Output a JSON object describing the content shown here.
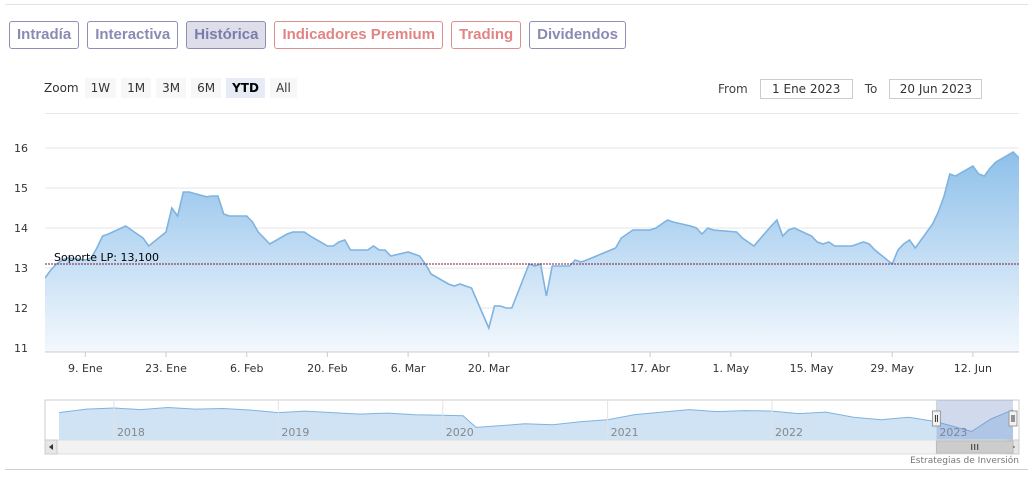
{
  "tabs": [
    {
      "label": "Intradía",
      "state": "normal"
    },
    {
      "label": "Interactiva",
      "state": "normal"
    },
    {
      "label": "Histórica",
      "state": "active"
    },
    {
      "label": "Indicadores Premium",
      "state": "red"
    },
    {
      "label": "Trading",
      "state": "red"
    },
    {
      "label": "Dividendos",
      "state": "normal"
    }
  ],
  "range_selector": {
    "zoom_label": "Zoom",
    "buttons": [
      "1W",
      "1M",
      "3M",
      "6M",
      "YTD",
      "All"
    ],
    "selected": "YTD",
    "from_label": "From",
    "from_value": "1 Ene 2023",
    "to_label": "To",
    "to_value": "20 Jun 2023"
  },
  "credits": "Estrategias de Inversión",
  "colors": {
    "line": "#7fb3e0",
    "area_top": "#8ec0ea",
    "area_bottom": "#f3f8fd",
    "support": "#7a1f3a",
    "nav_area": "#cfe3f5"
  },
  "chart_data": {
    "type": "area",
    "title": "",
    "xlabel": "",
    "ylabel": "",
    "ylim": [
      11,
      16
    ],
    "grid": true,
    "y_ticks": [
      11,
      12,
      13,
      14,
      15,
      16
    ],
    "x_tick_labels": [
      {
        "label": "9. Ene",
        "date": "2023-01-09"
      },
      {
        "label": "23. Ene",
        "date": "2023-01-23"
      },
      {
        "label": "6. Feb",
        "date": "2023-02-06"
      },
      {
        "label": "20. Feb",
        "date": "2023-02-20"
      },
      {
        "label": "6. Mar",
        "date": "2023-03-06"
      },
      {
        "label": "20. Mar",
        "date": "2023-03-20"
      },
      {
        "label": "17. Abr",
        "date": "2023-04-17"
      },
      {
        "label": "1. May",
        "date": "2023-05-01"
      },
      {
        "label": "15. May",
        "date": "2023-05-15"
      },
      {
        "label": "29. May",
        "date": "2023-05-29"
      },
      {
        "label": "12. Jun",
        "date": "2023-06-12"
      }
    ],
    "x_range": [
      "2023-01-02",
      "2023-06-20"
    ],
    "annotation": {
      "label": "Soporte LP: 13,100",
      "value": 13.1
    },
    "series": [
      {
        "points": [
          [
            "2023-01-02",
            12.75
          ],
          [
            "2023-01-03",
            12.95
          ],
          [
            "2023-01-04",
            13.1
          ],
          [
            "2023-01-05",
            13.2
          ],
          [
            "2023-01-06",
            13.25
          ],
          [
            "2023-01-09",
            13.2
          ],
          [
            "2023-01-10",
            13.25
          ],
          [
            "2023-01-11",
            13.5
          ],
          [
            "2023-01-12",
            13.8
          ],
          [
            "2023-01-13",
            13.85
          ],
          [
            "2023-01-16",
            14.05
          ],
          [
            "2023-01-17",
            13.95
          ],
          [
            "2023-01-18",
            13.85
          ],
          [
            "2023-01-19",
            13.75
          ],
          [
            "2023-01-20",
            13.55
          ],
          [
            "2023-01-23",
            13.9
          ],
          [
            "2023-01-24",
            14.5
          ],
          [
            "2023-01-25",
            14.3
          ],
          [
            "2023-01-26",
            14.9
          ],
          [
            "2023-01-27",
            14.9
          ],
          [
            "2023-01-30",
            14.78
          ],
          [
            "2023-01-31",
            14.8
          ],
          [
            "2023-02-01",
            14.8
          ],
          [
            "2023-02-02",
            14.35
          ],
          [
            "2023-02-03",
            14.3
          ],
          [
            "2023-02-06",
            14.3
          ],
          [
            "2023-02-07",
            14.15
          ],
          [
            "2023-02-08",
            13.9
          ],
          [
            "2023-02-09",
            13.75
          ],
          [
            "2023-02-10",
            13.6
          ],
          [
            "2023-02-13",
            13.85
          ],
          [
            "2023-02-14",
            13.9
          ],
          [
            "2023-02-15",
            13.9
          ],
          [
            "2023-02-16",
            13.9
          ],
          [
            "2023-02-17",
            13.8
          ],
          [
            "2023-02-20",
            13.55
          ],
          [
            "2023-02-21",
            13.55
          ],
          [
            "2023-02-22",
            13.65
          ],
          [
            "2023-02-23",
            13.7
          ],
          [
            "2023-02-24",
            13.45
          ],
          [
            "2023-02-27",
            13.45
          ],
          [
            "2023-02-28",
            13.55
          ],
          [
            "2023-03-01",
            13.45
          ],
          [
            "2023-03-02",
            13.45
          ],
          [
            "2023-03-03",
            13.3
          ],
          [
            "2023-03-06",
            13.4
          ],
          [
            "2023-03-07",
            13.35
          ],
          [
            "2023-03-08",
            13.3
          ],
          [
            "2023-03-09",
            13.1
          ],
          [
            "2023-03-10",
            12.85
          ],
          [
            "2023-03-13",
            12.6
          ],
          [
            "2023-03-14",
            12.55
          ],
          [
            "2023-03-15",
            12.6
          ],
          [
            "2023-03-16",
            12.55
          ],
          [
            "2023-03-17",
            12.5
          ],
          [
            "2023-03-20",
            11.5
          ],
          [
            "2023-03-21",
            12.05
          ],
          [
            "2023-03-22",
            12.05
          ],
          [
            "2023-03-23",
            12.0
          ],
          [
            "2023-03-24",
            12.0
          ],
          [
            "2023-03-27",
            13.1
          ],
          [
            "2023-03-28",
            13.05
          ],
          [
            "2023-03-29",
            13.1
          ],
          [
            "2023-03-30",
            12.3
          ],
          [
            "2023-03-31",
            13.05
          ],
          [
            "2023-04-03",
            13.05
          ],
          [
            "2023-04-04",
            13.2
          ],
          [
            "2023-04-05",
            13.15
          ],
          [
            "2023-04-06",
            13.2
          ],
          [
            "2023-04-11",
            13.5
          ],
          [
            "2023-04-12",
            13.75
          ],
          [
            "2023-04-13",
            13.85
          ],
          [
            "2023-04-14",
            13.95
          ],
          [
            "2023-04-17",
            13.95
          ],
          [
            "2023-04-18",
            14.0
          ],
          [
            "2023-04-19",
            14.1
          ],
          [
            "2023-04-20",
            14.2
          ],
          [
            "2023-04-21",
            14.15
          ],
          [
            "2023-04-24",
            14.05
          ],
          [
            "2023-04-25",
            14.0
          ],
          [
            "2023-04-26",
            13.85
          ],
          [
            "2023-04-27",
            14.0
          ],
          [
            "2023-04-28",
            13.95
          ],
          [
            "2023-05-02",
            13.9
          ],
          [
            "2023-05-03",
            13.75
          ],
          [
            "2023-05-04",
            13.65
          ],
          [
            "2023-05-05",
            13.55
          ],
          [
            "2023-05-08",
            14.05
          ],
          [
            "2023-05-09",
            14.2
          ],
          [
            "2023-05-10",
            13.8
          ],
          [
            "2023-05-11",
            13.95
          ],
          [
            "2023-05-12",
            14.0
          ],
          [
            "2023-05-15",
            13.8
          ],
          [
            "2023-05-16",
            13.65
          ],
          [
            "2023-05-17",
            13.6
          ],
          [
            "2023-05-18",
            13.65
          ],
          [
            "2023-05-19",
            13.55
          ],
          [
            "2023-05-22",
            13.55
          ],
          [
            "2023-05-23",
            13.6
          ],
          [
            "2023-05-24",
            13.65
          ],
          [
            "2023-05-25",
            13.6
          ],
          [
            "2023-05-26",
            13.45
          ],
          [
            "2023-05-29",
            13.1
          ],
          [
            "2023-05-30",
            13.45
          ],
          [
            "2023-05-31",
            13.6
          ],
          [
            "2023-06-01",
            13.7
          ],
          [
            "2023-06-02",
            13.5
          ],
          [
            "2023-06-05",
            14.1
          ],
          [
            "2023-06-06",
            14.4
          ],
          [
            "2023-06-07",
            14.8
          ],
          [
            "2023-06-08",
            15.35
          ],
          [
            "2023-06-09",
            15.3
          ],
          [
            "2023-06-12",
            15.55
          ],
          [
            "2023-06-13",
            15.35
          ],
          [
            "2023-06-14",
            15.3
          ],
          [
            "2023-06-15",
            15.5
          ],
          [
            "2023-06-16",
            15.65
          ],
          [
            "2023-06-19",
            15.9
          ],
          [
            "2023-06-20",
            15.75
          ]
        ]
      }
    ],
    "navigator": {
      "years": [
        "2018",
        "2019",
        "2020",
        "2021",
        "2022",
        "2023"
      ],
      "values": [
        [
          "2017-09-01",
          15.2
        ],
        [
          "2017-11-01",
          15.9
        ],
        [
          "2018-01-01",
          16.1
        ],
        [
          "2018-03-01",
          15.8
        ],
        [
          "2018-05-01",
          16.2
        ],
        [
          "2018-07-01",
          15.9
        ],
        [
          "2018-09-01",
          16.0
        ],
        [
          "2018-11-01",
          15.7
        ],
        [
          "2019-01-01",
          15.2
        ],
        [
          "2019-03-01",
          15.5
        ],
        [
          "2019-05-01",
          15.2
        ],
        [
          "2019-07-01",
          14.9
        ],
        [
          "2019-09-01",
          15.1
        ],
        [
          "2019-11-01",
          14.8
        ],
        [
          "2020-01-01",
          14.7
        ],
        [
          "2020-02-15",
          14.6
        ],
        [
          "2020-03-15",
          12.3
        ],
        [
          "2020-05-01",
          12.6
        ],
        [
          "2020-07-01",
          13.0
        ],
        [
          "2020-09-01",
          12.8
        ],
        [
          "2020-11-01",
          13.4
        ],
        [
          "2021-01-01",
          13.8
        ],
        [
          "2021-03-01",
          14.8
        ],
        [
          "2021-05-01",
          15.3
        ],
        [
          "2021-07-01",
          15.8
        ],
        [
          "2021-09-01",
          15.4
        ],
        [
          "2021-11-01",
          15.6
        ],
        [
          "2022-01-01",
          15.5
        ],
        [
          "2022-03-01",
          15.0
        ],
        [
          "2022-05-01",
          15.3
        ],
        [
          "2022-07-01",
          14.3
        ],
        [
          "2022-09-01",
          13.8
        ],
        [
          "2022-11-01",
          14.3
        ],
        [
          "2023-01-01",
          13.4
        ],
        [
          "2023-03-20",
          11.5
        ],
        [
          "2023-05-01",
          13.9
        ],
        [
          "2023-06-20",
          15.75
        ]
      ],
      "selected_range": [
        "2023-01-01",
        "2023-06-20"
      ]
    }
  }
}
